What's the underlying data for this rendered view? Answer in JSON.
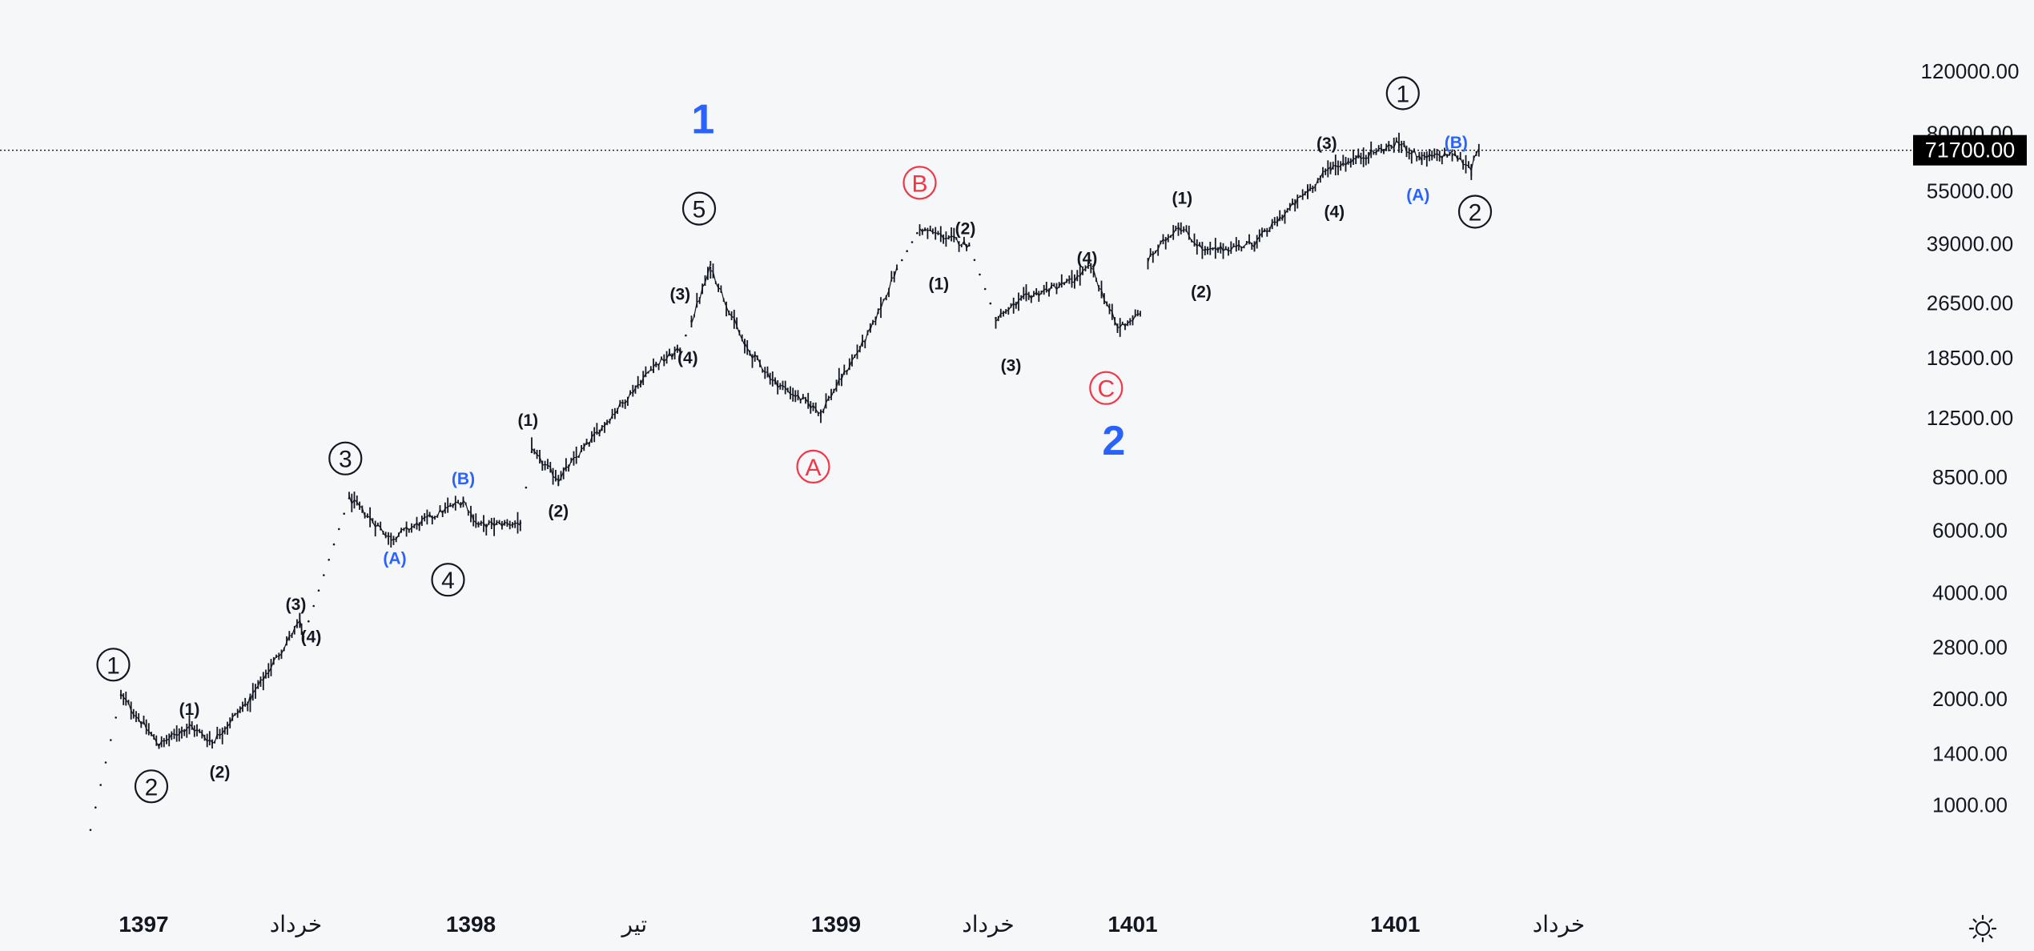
{
  "chart_data": {
    "type": "candlestick",
    "scale": "log",
    "grid": false,
    "ylim": [
      700,
      160000
    ],
    "y_ticks": [
      "120000.00",
      "80000.00",
      "55000.00",
      "39000.00",
      "26500.00",
      "18500.00",
      "12500.00",
      "8500.00",
      "6000.00",
      "4000.00",
      "2800.00",
      "2000.00",
      "1400.00",
      "1000.00"
    ],
    "x_ticks": [
      {
        "label": "1397",
        "bold": true,
        "t": 0.14
      },
      {
        "label": "خرداد",
        "bold": false,
        "t": 0.54
      },
      {
        "label": "1398",
        "bold": true,
        "t": 1.0
      },
      {
        "label": "تیر",
        "bold": false,
        "t": 1.43
      },
      {
        "label": "1399",
        "bold": true,
        "t": 1.96
      },
      {
        "label": "خرداد",
        "bold": false,
        "t": 2.36
      },
      {
        "label": "1401",
        "bold": true,
        "t": 2.74
      },
      {
        "label": "1401",
        "bold": true,
        "t": 3.43
      },
      {
        "label": "خرداد",
        "bold": false,
        "t": 3.86
      }
    ],
    "last_price": {
      "value": 71700,
      "label": "71700.00"
    },
    "series": [
      {
        "points": [
          {
            "t": 0.0,
            "price": 850,
            "dotted": true
          },
          {
            "t": 0.08,
            "price": 2050,
            "dotted": true
          },
          {
            "t": 0.18,
            "price": 1480
          },
          {
            "t": 0.26,
            "price": 1680
          },
          {
            "t": 0.32,
            "price": 1510
          },
          {
            "t": 0.42,
            "price": 2000
          },
          {
            "t": 0.55,
            "price": 3300
          },
          {
            "t": 0.56,
            "price": 3000
          },
          {
            "t": 0.68,
            "price": 7400,
            "dotted": true
          },
          {
            "t": 0.79,
            "price": 5700
          },
          {
            "t": 0.98,
            "price": 7300
          },
          {
            "t": 1.02,
            "price": 6200
          },
          {
            "t": 1.13,
            "price": 6300
          },
          {
            "t": 1.16,
            "price": 10000,
            "dotted": true
          },
          {
            "t": 1.23,
            "price": 8400
          },
          {
            "t": 1.48,
            "price": 17500
          },
          {
            "t": 1.55,
            "price": 19500
          },
          {
            "t": 1.58,
            "price": 23500,
            "dotted": true
          },
          {
            "t": 1.63,
            "price": 33500
          },
          {
            "t": 1.72,
            "price": 20000
          },
          {
            "t": 1.8,
            "price": 15800
          },
          {
            "t": 1.92,
            "price": 13000
          },
          {
            "t": 2.05,
            "price": 22000
          },
          {
            "t": 2.12,
            "price": 33000
          },
          {
            "t": 2.18,
            "price": 43000,
            "dotted": true
          },
          {
            "t": 2.27,
            "price": 40000
          },
          {
            "t": 2.31,
            "price": 38500
          },
          {
            "t": 2.38,
            "price": 24000,
            "dotted": true
          },
          {
            "t": 2.46,
            "price": 27500
          },
          {
            "t": 2.58,
            "price": 30500
          },
          {
            "t": 2.63,
            "price": 33500
          },
          {
            "t": 2.7,
            "price": 22500
          },
          {
            "t": 2.76,
            "price": 24500
          },
          {
            "t": 2.78,
            "price": 35000,
            "gap": true
          },
          {
            "t": 2.86,
            "price": 44000
          },
          {
            "t": 2.93,
            "price": 37000
          },
          {
            "t": 3.06,
            "price": 39000
          },
          {
            "t": 3.2,
            "price": 55000
          },
          {
            "t": 3.26,
            "price": 64000
          },
          {
            "t": 3.44,
            "price": 75000
          },
          {
            "t": 3.5,
            "price": 68000
          },
          {
            "t": 3.58,
            "price": 70000
          },
          {
            "t": 3.63,
            "price": 64000
          },
          {
            "t": 3.65,
            "price": 71700
          }
        ]
      }
    ],
    "annotations": [
      {
        "text": "1",
        "style": "big",
        "color": "#2962ff",
        "t": 1.61,
        "price": 88000
      },
      {
        "text": "2",
        "style": "big",
        "color": "#2962ff",
        "t": 2.69,
        "price": 10800
      },
      {
        "text": "1",
        "style": "circle",
        "color": "#131722",
        "t": 0.06,
        "price": 2500
      },
      {
        "text": "2",
        "style": "circle",
        "color": "#131722",
        "t": 0.16,
        "price": 1130
      },
      {
        "text": "3",
        "style": "circle",
        "color": "#131722",
        "t": 0.67,
        "price": 9600
      },
      {
        "text": "4",
        "style": "circle",
        "color": "#131722",
        "t": 0.94,
        "price": 4350
      },
      {
        "text": "5",
        "style": "circle",
        "color": "#131722",
        "t": 1.6,
        "price": 49000
      },
      {
        "text": "1",
        "style": "circle",
        "color": "#131722",
        "t": 3.45,
        "price": 104000
      },
      {
        "text": "2",
        "style": "circle",
        "color": "#131722",
        "t": 3.64,
        "price": 48000
      },
      {
        "text": "A",
        "style": "circle",
        "color": "#f23645",
        "t": 1.9,
        "price": 9100
      },
      {
        "text": "B",
        "style": "circle",
        "color": "#f23645",
        "t": 2.18,
        "price": 58000
      },
      {
        "text": "C",
        "style": "circle",
        "color": "#f23645",
        "t": 2.67,
        "price": 15200
      },
      {
        "text": "(1)",
        "style": "small",
        "color": "#131722",
        "t": 0.26,
        "price": 1870
      },
      {
        "text": "(2)",
        "style": "small",
        "color": "#131722",
        "t": 0.34,
        "price": 1240
      },
      {
        "text": "(3)",
        "style": "small",
        "color": "#131722",
        "t": 0.54,
        "price": 3700
      },
      {
        "text": "(4)",
        "style": "small",
        "color": "#131722",
        "t": 0.58,
        "price": 3000
      },
      {
        "text": "(A)",
        "style": "small",
        "color": "#2962ff",
        "t": 0.8,
        "price": 5000
      },
      {
        "text": "(B)",
        "style": "small",
        "color": "#2962ff",
        "t": 0.98,
        "price": 8400
      },
      {
        "text": "(1)",
        "style": "small",
        "color": "#131722",
        "t": 1.15,
        "price": 12300
      },
      {
        "text": "(2)",
        "style": "small",
        "color": "#131722",
        "t": 1.23,
        "price": 6800
      },
      {
        "text": "(3)",
        "style": "small",
        "color": "#131722",
        "t": 1.55,
        "price": 28000
      },
      {
        "text": "(4)",
        "style": "small",
        "color": "#131722",
        "t": 1.57,
        "price": 18500
      },
      {
        "text": "(1)",
        "style": "small",
        "color": "#131722",
        "t": 2.23,
        "price": 30000
      },
      {
        "text": "(2)",
        "style": "small",
        "color": "#131722",
        "t": 2.3,
        "price": 43000
      },
      {
        "text": "(3)",
        "style": "small",
        "color": "#131722",
        "t": 2.42,
        "price": 17600
      },
      {
        "text": "(4)",
        "style": "small",
        "color": "#131722",
        "t": 2.62,
        "price": 35500
      },
      {
        "text": "(1)",
        "style": "small",
        "color": "#131722",
        "t": 2.87,
        "price": 52500
      },
      {
        "text": "(2)",
        "style": "small",
        "color": "#131722",
        "t": 2.92,
        "price": 28500
      },
      {
        "text": "(3)",
        "style": "small",
        "color": "#131722",
        "t": 3.25,
        "price": 75000
      },
      {
        "text": "(4)",
        "style": "small",
        "color": "#131722",
        "t": 3.27,
        "price": 48000
      },
      {
        "text": "(A)",
        "style": "small",
        "color": "#2962ff",
        "t": 3.49,
        "price": 53500
      },
      {
        "text": "(B)",
        "style": "small",
        "color": "#2962ff",
        "t": 3.59,
        "price": 75500
      }
    ]
  },
  "ui": {
    "settings_icon": "sun-icon",
    "colors": {
      "background": "#f6f7f9",
      "candle": "#131722",
      "price_line": "#131722",
      "badge": "#000000"
    }
  }
}
